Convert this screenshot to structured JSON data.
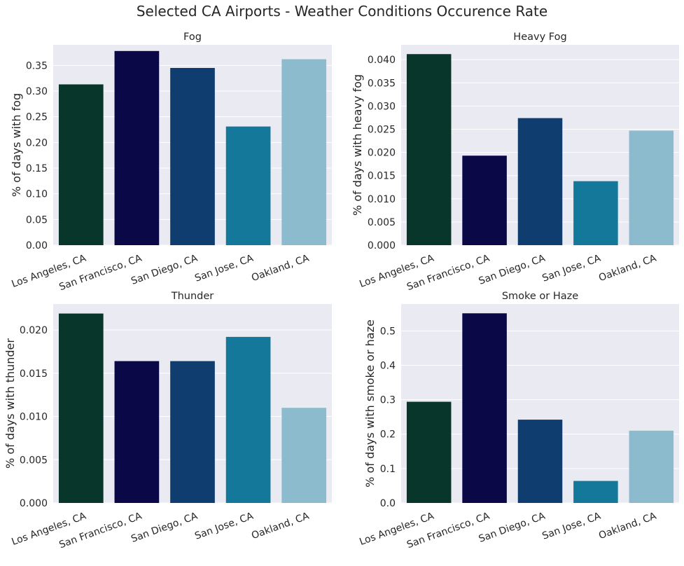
{
  "figure": {
    "suptitle": "Selected CA Airports - Weather Conditions Occurence Rate"
  },
  "colors": {
    "background": "#eaeaf2",
    "grid": "#ffffff",
    "bars": [
      "#08362a",
      "#0b0848",
      "#0f3d6f",
      "#13789a",
      "#8bbbcc"
    ]
  },
  "chart_data": [
    {
      "type": "bar",
      "title": "Fog",
      "xlabel": "",
      "ylabel": "% of days with fog",
      "categories": [
        "Los Angeles, CA",
        "San Francisco, CA",
        "San Diego, CA",
        "San Jose, CA",
        "Oakland, CA"
      ],
      "values": [
        0.313,
        0.378,
        0.345,
        0.231,
        0.362
      ],
      "ylim": [
        0,
        0.39
      ],
      "yticks": [
        "0.00",
        "0.05",
        "0.10",
        "0.15",
        "0.20",
        "0.25",
        "0.30",
        "0.35"
      ],
      "ytick_values": [
        0,
        0.05,
        0.1,
        0.15,
        0.2,
        0.25,
        0.3,
        0.35
      ],
      "grid": true
    },
    {
      "type": "bar",
      "title": "Heavy Fog",
      "xlabel": "",
      "ylabel": "% of days with heavy fog",
      "categories": [
        "Los Angeles, CA",
        "San Francisco, CA",
        "San Diego, CA",
        "San Jose, CA",
        "Oakland, CA"
      ],
      "values": [
        0.0412,
        0.0193,
        0.0274,
        0.0138,
        0.0247
      ],
      "ylim": [
        0,
        0.0432
      ],
      "yticks": [
        "0.000",
        "0.005",
        "0.010",
        "0.015",
        "0.020",
        "0.025",
        "0.030",
        "0.035",
        "0.040"
      ],
      "ytick_values": [
        0,
        0.005,
        0.01,
        0.015,
        0.02,
        0.025,
        0.03,
        0.035,
        0.04
      ],
      "grid": true
    },
    {
      "type": "bar",
      "title": "Thunder",
      "xlabel": "",
      "ylabel": "% of days with thunder",
      "categories": [
        "Los Angeles, CA",
        "San Francisco, CA",
        "San Diego, CA",
        "San Jose, CA",
        "Oakland, CA"
      ],
      "values": [
        0.0219,
        0.0164,
        0.0164,
        0.0192,
        0.011
      ],
      "ylim": [
        0,
        0.023
      ],
      "yticks": [
        "0.000",
        "0.005",
        "0.010",
        "0.015",
        "0.020"
      ],
      "ytick_values": [
        0,
        0.005,
        0.01,
        0.015,
        0.02
      ],
      "grid": true
    },
    {
      "type": "bar",
      "title": "Smoke or Haze",
      "xlabel": "",
      "ylabel": "% of days with smoke or haze",
      "categories": [
        "Los Angeles, CA",
        "San Francisco, CA",
        "San Diego, CA",
        "San Jose, CA",
        "Oakland, CA"
      ],
      "values": [
        0.294,
        0.551,
        0.242,
        0.064,
        0.21
      ],
      "ylim": [
        0,
        0.578
      ],
      "yticks": [
        "0.0",
        "0.1",
        "0.2",
        "0.3",
        "0.4",
        "0.5"
      ],
      "ytick_values": [
        0,
        0.1,
        0.2,
        0.3,
        0.4,
        0.5
      ],
      "grid": true
    }
  ]
}
